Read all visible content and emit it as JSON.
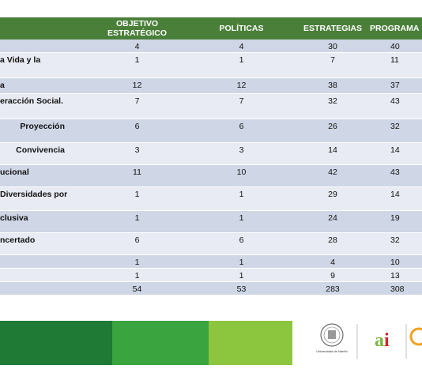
{
  "headers": [
    "",
    "OBJETIVO ESTRATÉGICO",
    "POLÍTICAS",
    "ESTRATEGIAS",
    "PROGRAMA"
  ],
  "rows": [
    {
      "name": "",
      "objetivo": "4",
      "politicas": "4",
      "estrategias": "30",
      "programas": "40"
    },
    {
      "name": "a Vida y la",
      "objetivo": "1",
      "politicas": "1",
      "estrategias": "7",
      "programas": "11"
    },
    {
      "name": "a",
      "objetivo": "12",
      "politicas": "12",
      "estrategias": "38",
      "programas": "37"
    },
    {
      "name": "eracción Social.",
      "objetivo": "7",
      "politicas": "7",
      "estrategias": "32",
      "programas": "43"
    },
    {
      "name": "Proyección",
      "objetivo": "6",
      "politicas": "6",
      "estrategias": "26",
      "programas": "32"
    },
    {
      "name": "Convivencia",
      "objetivo": "3",
      "politicas": "3",
      "estrategias": "14",
      "programas": "14"
    },
    {
      "name": "ucional",
      "objetivo": "11",
      "politicas": "10",
      "estrategias": "42",
      "programas": "43"
    },
    {
      "name": "Diversidades por",
      "objetivo": "1",
      "politicas": "1",
      "estrategias": "29",
      "programas": "14"
    },
    {
      "name": "clusiva",
      "objetivo": "1",
      "politicas": "1",
      "estrategias": "24",
      "programas": "19"
    },
    {
      "name": "ncertado",
      "objetivo": "6",
      "politicas": "6",
      "estrategias": "28",
      "programas": "32"
    },
    {
      "name": "",
      "objetivo": "1",
      "politicas": "1",
      "estrategias": "4",
      "programas": "10"
    },
    {
      "name": "",
      "objetivo": "1",
      "politicas": "1",
      "estrategias": "9",
      "programas": "13"
    },
    {
      "name": "",
      "objetivo": "54",
      "politicas": "53",
      "estrategias": "283",
      "programas": "308"
    }
  ],
  "logos": {
    "udenar": "Universidad de Nariño",
    "ai": "ai"
  },
  "colors": {
    "header": "#4a7f3a",
    "row_even": "#cfd6e6",
    "row_odd": "#e8ebf3",
    "bar_1": "#1e7a35",
    "bar_2": "#3aa43e",
    "bar_3": "#8cc63f"
  }
}
